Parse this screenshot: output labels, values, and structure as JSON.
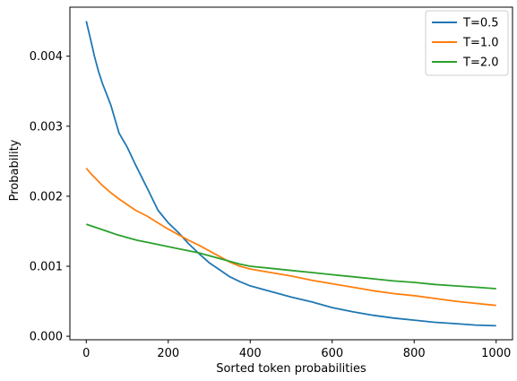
{
  "chart_data": {
    "type": "line",
    "title": "",
    "xlabel": "Sorted token probabilities",
    "ylabel": "Probability",
    "xlim": [
      -40,
      1040
    ],
    "ylim": [
      -5e-05,
      0.0047
    ],
    "xticks": [
      0,
      200,
      400,
      600,
      800,
      1000
    ],
    "xtick_labels": [
      "0",
      "200",
      "400",
      "600",
      "800",
      "1000"
    ],
    "yticks": [
      0.0,
      0.001,
      0.002,
      0.003,
      0.004
    ],
    "ytick_labels": [
      "0.000",
      "0.001",
      "0.002",
      "0.003",
      "0.004"
    ],
    "grid": false,
    "legend_position": "top-right",
    "series": [
      {
        "name": "T=0.5",
        "color": "#1f77b4",
        "x": [
          0,
          10,
          20,
          30,
          40,
          50,
          60,
          70,
          80,
          100,
          120,
          150,
          175,
          200,
          225,
          250,
          275,
          300,
          325,
          350,
          375,
          400,
          450,
          500,
          550,
          600,
          650,
          700,
          750,
          800,
          850,
          900,
          950,
          1000
        ],
        "values": [
          0.0045,
          0.00425,
          0.004,
          0.00378,
          0.0036,
          0.00345,
          0.0033,
          0.0031,
          0.0029,
          0.0027,
          0.00245,
          0.0021,
          0.0018,
          0.00162,
          0.00148,
          0.00132,
          0.00118,
          0.00105,
          0.00095,
          0.00085,
          0.00078,
          0.00072,
          0.00064,
          0.00056,
          0.00049,
          0.00041,
          0.00035,
          0.0003,
          0.00026,
          0.00023,
          0.0002,
          0.00018,
          0.00016,
          0.00015
        ]
      },
      {
        "name": "T=1.0",
        "color": "#ff7f0e",
        "x": [
          0,
          10,
          20,
          30,
          40,
          50,
          60,
          80,
          100,
          120,
          150,
          175,
          200,
          225,
          250,
          275,
          300,
          325,
          350,
          375,
          400,
          450,
          500,
          550,
          600,
          650,
          700,
          750,
          800,
          850,
          900,
          950,
          1000
        ],
        "values": [
          0.0024,
          0.00233,
          0.00227,
          0.00221,
          0.00215,
          0.0021,
          0.00205,
          0.00196,
          0.00188,
          0.0018,
          0.00171,
          0.00162,
          0.00153,
          0.00145,
          0.00137,
          0.0013,
          0.00122,
          0.00114,
          0.00106,
          0.001,
          0.00096,
          0.00091,
          0.00086,
          0.0008,
          0.00075,
          0.0007,
          0.00065,
          0.00061,
          0.00058,
          0.00054,
          0.0005,
          0.00047,
          0.00044
        ]
      },
      {
        "name": "T=2.0",
        "color": "#2ca02c",
        "x": [
          0,
          25,
          50,
          75,
          100,
          125,
          150,
          175,
          200,
          225,
          250,
          275,
          300,
          325,
          350,
          375,
          400,
          450,
          500,
          550,
          600,
          650,
          700,
          750,
          800,
          850,
          900,
          950,
          1000
        ],
        "values": [
          0.0016,
          0.00155,
          0.0015,
          0.00145,
          0.00141,
          0.00137,
          0.00134,
          0.00131,
          0.00128,
          0.00125,
          0.00122,
          0.00119,
          0.00115,
          0.00111,
          0.00107,
          0.00103,
          0.001,
          0.00097,
          0.00094,
          0.00091,
          0.00088,
          0.00085,
          0.00082,
          0.00079,
          0.00077,
          0.00074,
          0.00072,
          0.0007,
          0.00068
        ]
      }
    ]
  }
}
